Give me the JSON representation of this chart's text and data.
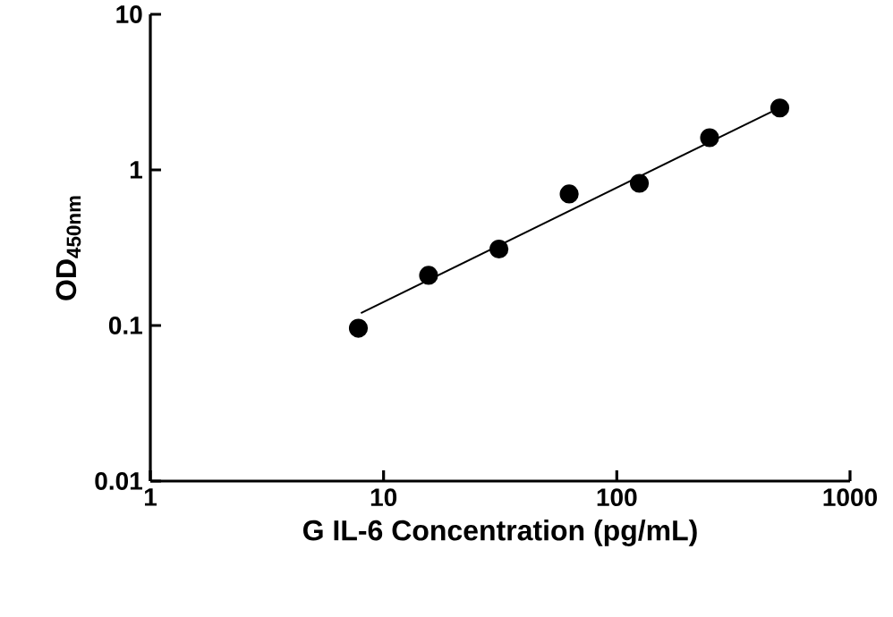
{
  "chart_data": {
    "type": "scatter",
    "xlabel": "G IL-6 Concentration (pg/mL)",
    "ylabel": "OD$_{450nm}$",
    "log": "xy",
    "xlim": [
      1,
      1000
    ],
    "ylim": [
      0.01,
      10
    ],
    "xticks": [
      1,
      10,
      100,
      1000
    ],
    "yticks": [
      0.01,
      0.1,
      1,
      10
    ],
    "grid": false,
    "series": [
      {
        "marker": "circle",
        "color": "#000000",
        "x": [
          7.8,
          15.6,
          31.25,
          62.5,
          125,
          250,
          500
        ],
        "values": [
          0.096,
          0.21,
          0.31,
          0.7,
          0.82,
          1.61,
          2.5
        ]
      },
      {
        "type": "line",
        "color": "#000000",
        "x": [
          8,
          460
        ],
        "values": [
          0.12,
          2.36
        ]
      }
    ]
  }
}
